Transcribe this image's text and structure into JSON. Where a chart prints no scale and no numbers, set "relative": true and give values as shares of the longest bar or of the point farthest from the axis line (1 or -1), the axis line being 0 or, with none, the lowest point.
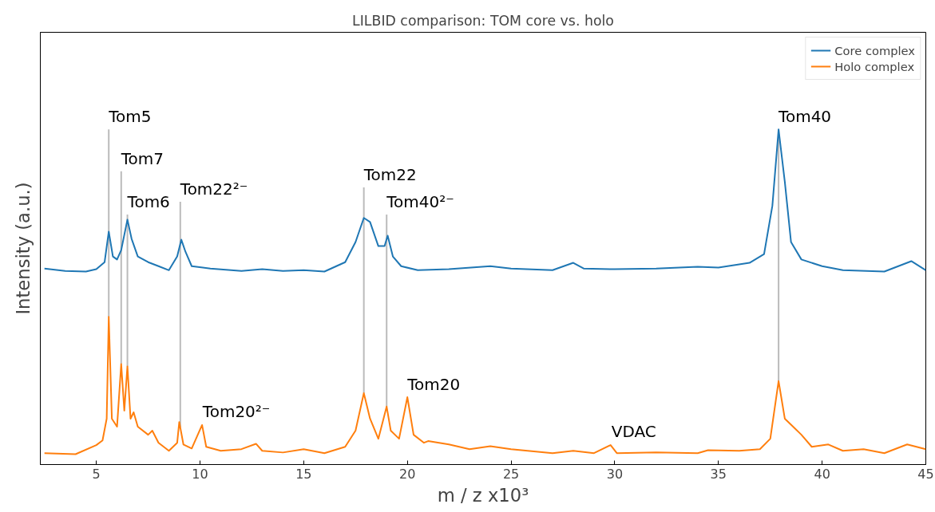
{
  "chart_data": {
    "type": "line",
    "title": "LILBID comparison: TOM core vs. holo",
    "xlabel": "m / z x10³",
    "ylabel": "Intensity (a.u.)",
    "relative": true,
    "xlim": [
      2.3,
      45
    ],
    "xticks": [
      5,
      10,
      15,
      20,
      25,
      30,
      35,
      40,
      45
    ],
    "grid": false,
    "legend": "top right",
    "series": [
      {
        "name": "Core complex",
        "color": "#1f77b4",
        "x": [
          2.5,
          3.5,
          4.5,
          5.0,
          5.4,
          5.6,
          5.8,
          6.0,
          6.2,
          6.5,
          6.7,
          7.0,
          7.5,
          8.0,
          8.5,
          8.9,
          9.1,
          9.3,
          9.6,
          10.5,
          12,
          13,
          14,
          15,
          16,
          17,
          17.5,
          17.9,
          18.2,
          18.6,
          18.9,
          19.05,
          19.3,
          19.7,
          20.5,
          22,
          24,
          25,
          27,
          28,
          28.5,
          30,
          32,
          34,
          35,
          36.5,
          37.2,
          37.6,
          37.9,
          38.2,
          38.5,
          39,
          40,
          41,
          43,
          44.3,
          45
        ],
        "values": [
          0.585,
          0.578,
          0.576,
          0.583,
          0.604,
          0.695,
          0.621,
          0.612,
          0.64,
          0.731,
          0.674,
          0.621,
          0.604,
          0.592,
          0.58,
          0.621,
          0.671,
          0.635,
          0.592,
          0.585,
          0.578,
          0.583,
          0.578,
          0.58,
          0.576,
          0.604,
          0.664,
          0.736,
          0.724,
          0.652,
          0.652,
          0.683,
          0.621,
          0.592,
          0.58,
          0.583,
          0.592,
          0.585,
          0.58,
          0.602,
          0.585,
          0.583,
          0.585,
          0.59,
          0.588,
          0.602,
          0.628,
          0.772,
          1.0,
          0.844,
          0.664,
          0.612,
          0.592,
          0.58,
          0.576,
          0.607,
          0.58
        ]
      },
      {
        "name": "Holo complex",
        "color": "#ff7f0e",
        "x": [
          2.5,
          4,
          5.0,
          5.3,
          5.5,
          5.6,
          5.75,
          6.0,
          6.2,
          6.35,
          6.5,
          6.65,
          6.8,
          7.0,
          7.5,
          7.7,
          8.0,
          8.5,
          8.9,
          9.0,
          9.2,
          9.6,
          10.1,
          10.3,
          11,
          12,
          12.7,
          13,
          14,
          15,
          16,
          17,
          17.5,
          17.9,
          18.2,
          18.6,
          19.0,
          19.2,
          19.6,
          20.0,
          20.3,
          20.8,
          21,
          22,
          23,
          24,
          25,
          27,
          28,
          29,
          29.8,
          30.1,
          32,
          34,
          34.5,
          36,
          37,
          37.5,
          37.9,
          38.2,
          38.6,
          39,
          39.5,
          40.3,
          41,
          42,
          43,
          44.1,
          45
        ],
        "values": [
          0.034,
          0.031,
          0.058,
          0.072,
          0.137,
          0.441,
          0.137,
          0.113,
          0.3,
          0.161,
          0.293,
          0.137,
          0.156,
          0.113,
          0.089,
          0.101,
          0.065,
          0.041,
          0.065,
          0.127,
          0.06,
          0.048,
          0.118,
          0.053,
          0.041,
          0.046,
          0.062,
          0.041,
          0.036,
          0.046,
          0.034,
          0.053,
          0.101,
          0.213,
          0.137,
          0.077,
          0.173,
          0.101,
          0.077,
          0.201,
          0.089,
          0.065,
          0.07,
          0.06,
          0.046,
          0.055,
          0.046,
          0.034,
          0.041,
          0.034,
          0.058,
          0.034,
          0.036,
          0.034,
          0.043,
          0.041,
          0.046,
          0.077,
          0.249,
          0.137,
          0.113,
          0.089,
          0.053,
          0.06,
          0.041,
          0.046,
          0.034,
          0.06,
          0.046
        ]
      }
    ],
    "ref_lines": [
      {
        "axis": "x",
        "value": 5.6,
        "color": "#bbbbbb"
      },
      {
        "axis": "x",
        "value": 6.2,
        "color": "#bbbbbb"
      },
      {
        "axis": "x",
        "value": 6.5,
        "color": "#bbbbbb"
      },
      {
        "axis": "x",
        "value": 9.05,
        "color": "#bbbbbb"
      },
      {
        "axis": "x",
        "value": 17.9,
        "color": "#bbbbbb"
      },
      {
        "axis": "x",
        "value": 19.0,
        "color": "#bbbbbb"
      },
      {
        "axis": "x",
        "value": 37.9,
        "color": "#bbbbbb"
      }
    ],
    "annotations": [
      {
        "text": "Tom5",
        "x": 5.6,
        "y": 1.0
      },
      {
        "text": "Tom7",
        "x": 6.2,
        "y": 0.875
      },
      {
        "text": "Tom6",
        "x": 6.5,
        "y": 0.746
      },
      {
        "text": "Tom22²⁻",
        "x": 9.05,
        "y": 0.784
      },
      {
        "text": "Tom22",
        "x": 17.9,
        "y": 0.827
      },
      {
        "text": "Tom40²⁻",
        "x": 19.0,
        "y": 0.746
      },
      {
        "text": "Tom40",
        "x": 37.9,
        "y": 1.0
      },
      {
        "text": "Tom20²⁻",
        "x": 10.13,
        "y": 0.12
      },
      {
        "text": "Tom20",
        "x": 20.0,
        "y": 0.2
      },
      {
        "text": "VDAC",
        "x": 29.84,
        "y": 0.06
      }
    ]
  }
}
